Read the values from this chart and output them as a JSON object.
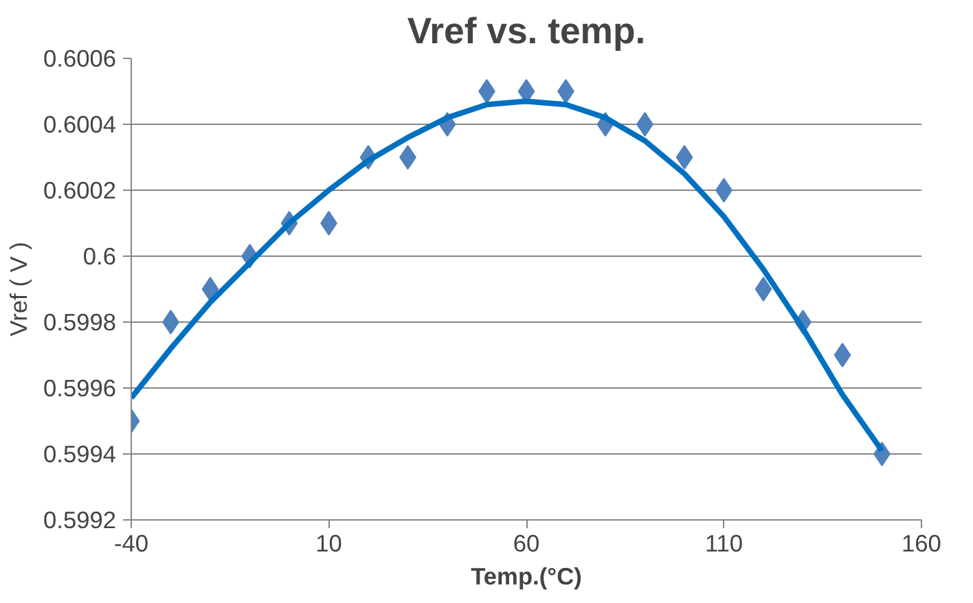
{
  "chart_data": {
    "type": "scatter",
    "title": "Vref vs. temp.",
    "xlabel": "Temp.(°C)",
    "ylabel": "Vref ( V )",
    "xlim": [
      -40,
      160
    ],
    "xticks": [
      -40,
      10,
      60,
      110,
      160
    ],
    "ylim": [
      0.5992,
      0.6006
    ],
    "yticks": [
      {
        "value": 0.5992,
        "label": "0.5992"
      },
      {
        "value": 0.5994,
        "label": "0.5994"
      },
      {
        "value": 0.5996,
        "label": "0.5996"
      },
      {
        "value": 0.5998,
        "label": "0.5998"
      },
      {
        "value": 0.6,
        "label": "0.6"
      },
      {
        "value": 0.6002,
        "label": "0.6002"
      },
      {
        "value": 0.6004,
        "label": "0.6004"
      },
      {
        "value": 0.6006,
        "label": "0.6006"
      }
    ],
    "grid": "y",
    "series": [
      {
        "marker": "diamond",
        "color": "#4f81bd",
        "x": [
          -40,
          -30,
          -20,
          -10,
          0,
          10,
          20,
          30,
          40,
          50,
          60,
          70,
          80,
          90,
          100,
          110,
          120,
          130,
          140,
          150
        ],
        "values": [
          0.5995,
          0.5998,
          0.5999,
          0.6,
          0.6001,
          0.6001,
          0.6003,
          0.6003,
          0.6004,
          0.6005,
          0.6005,
          0.6005,
          0.6004,
          0.6004,
          0.6003,
          0.6002,
          0.5999,
          0.5998,
          0.5997,
          0.5994
        ]
      },
      {
        "type": "line",
        "line_style": "solid",
        "color": "#0070c0",
        "x": [
          -40,
          -30,
          -20,
          -10,
          0,
          10,
          20,
          30,
          40,
          50,
          60,
          70,
          80,
          90,
          100,
          110,
          120,
          130,
          140,
          150
        ],
        "values": [
          0.59957,
          0.59972,
          0.59986,
          0.59998,
          0.6001,
          0.6002,
          0.60029,
          0.60036,
          0.60042,
          0.60046,
          0.60047,
          0.60046,
          0.60042,
          0.60035,
          0.60025,
          0.60012,
          0.59996,
          0.59978,
          0.59958,
          0.59941
        ]
      }
    ]
  }
}
